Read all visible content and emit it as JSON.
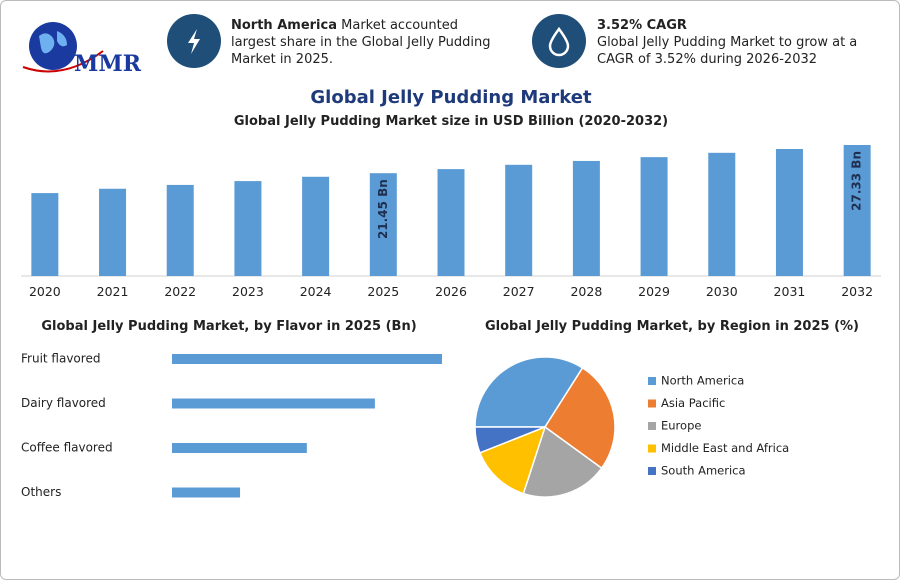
{
  "header": {
    "logo": "MMR",
    "info": [
      {
        "highlight": "North America",
        "text": "Market accounted largest share in the Global Jelly Pudding Market in 2025."
      },
      {
        "highlight": "3.52% CAGR",
        "text": "Global Jelly Pudding Market to grow at a CAGR of 3.52% during 2026-2032"
      }
    ]
  },
  "title": "Global Jelly Pudding Market",
  "chart_data": [
    {
      "type": "bar",
      "title": "Global Jelly Pudding Market size in USD Billion (2020-2032)",
      "categories": [
        "2020",
        "2021",
        "2022",
        "2023",
        "2024",
        "2025",
        "2026",
        "2027",
        "2028",
        "2029",
        "2030",
        "2031",
        "2032"
      ],
      "values": [
        17.3,
        18.2,
        19.0,
        19.8,
        20.7,
        21.45,
        22.3,
        23.2,
        24.0,
        24.8,
        25.7,
        26.5,
        27.33
      ],
      "value_labels": [
        null,
        null,
        null,
        null,
        null,
        "21.45 Bn",
        null,
        null,
        null,
        null,
        null,
        null,
        "27.33 Bn"
      ],
      "color": "#5b9bd5"
    },
    {
      "type": "hbar",
      "title": "Global Jelly Pudding Market, by Flavor in 2025 (Bn)",
      "categories": [
        "Fruit flavored",
        "Dairy flavored",
        "Coffee flavored",
        "Others"
      ],
      "values": [
        8.57,
        6.44,
        4.28,
        2.16
      ],
      "color": "#5b9bd5"
    },
    {
      "type": "pie",
      "title": "Global Jelly Pudding Market, by Region in 2025 (%)",
      "categories": [
        "North America",
        "Asia Pacific",
        "Europe",
        "Middle East and Africa",
        "South America"
      ],
      "values": [
        34,
        26,
        20,
        14,
        6
      ],
      "colors": [
        "#5b9bd5",
        "#ed7d31",
        "#a5a5a5",
        "#ffc000",
        "#4472c4"
      ]
    }
  ]
}
